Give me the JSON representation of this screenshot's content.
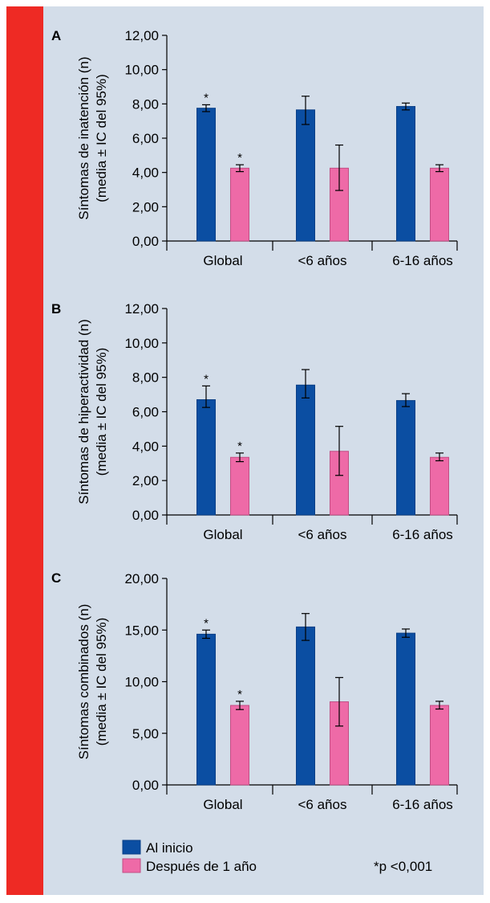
{
  "colors": {
    "al_inicio": "#0b4ea2",
    "despues": "#ee6aa7",
    "left_band": "#ee2a24",
    "background": "#d3dde9"
  },
  "legend": {
    "series1": "Al inicio",
    "series2": "Después de 1 año",
    "note": "*p <0,001"
  },
  "chart_data": [
    {
      "type": "bar",
      "panel": "A",
      "ylabel_line1": "Síntomas de inatención (n)",
      "ylabel_line2": "(media ± IC del 95%)",
      "yticks": [
        "0,00",
        "2,00",
        "4,00",
        "6,00",
        "8,00",
        "10,00",
        "12,00"
      ],
      "ylim": [
        0,
        12
      ],
      "categories": [
        "Global",
        "<6 años",
        "6-16 años"
      ],
      "series": [
        {
          "name": "Al inicio",
          "values": [
            7.75,
            7.65,
            7.85
          ],
          "ci_low": [
            7.55,
            6.8,
            7.65
          ],
          "ci_high": [
            7.95,
            8.45,
            8.05
          ]
        },
        {
          "name": "Después de 1 año",
          "values": [
            4.25,
            4.25,
            4.25
          ],
          "ci_low": [
            4.05,
            2.95,
            4.05
          ],
          "ci_high": [
            4.45,
            5.6,
            4.45
          ]
        }
      ],
      "significance": [
        "*",
        "*"
      ]
    },
    {
      "type": "bar",
      "panel": "B",
      "ylabel_line1": "Síntomas de hiperactividad (n)",
      "ylabel_line2": "(media ± IC del 95%)",
      "yticks": [
        "0,00",
        "2,00",
        "4,00",
        "6,00",
        "8,00",
        "10,00",
        "12,00"
      ],
      "ylim": [
        0,
        12
      ],
      "categories": [
        "Global",
        "<6 años",
        "6-16 años"
      ],
      "series": [
        {
          "name": "Al inicio",
          "values": [
            6.7,
            7.55,
            6.65
          ],
          "ci_low": [
            6.25,
            6.8,
            6.3
          ],
          "ci_high": [
            7.5,
            8.45,
            7.05
          ]
        },
        {
          "name": "Después de 1 año",
          "values": [
            3.35,
            3.7,
            3.35
          ],
          "ci_low": [
            3.1,
            2.3,
            3.15
          ],
          "ci_high": [
            3.6,
            5.15,
            3.6
          ]
        }
      ],
      "significance": [
        "*",
        "*"
      ]
    },
    {
      "type": "bar",
      "panel": "C",
      "ylabel_line1": "Síntomas combinados (n)",
      "ylabel_line2": "(media ± IC del 95%)",
      "yticks": [
        "0,00",
        "5,00",
        "10,00",
        "15,00",
        "20,00"
      ],
      "ylim": [
        0,
        20
      ],
      "categories": [
        "Global",
        "<6 años",
        "6-16 años"
      ],
      "series": [
        {
          "name": "Al inicio",
          "values": [
            14.6,
            15.3,
            14.7
          ],
          "ci_low": [
            14.2,
            14.0,
            14.3
          ],
          "ci_high": [
            15.0,
            16.6,
            15.1
          ]
        },
        {
          "name": "Después de 1 año",
          "values": [
            7.7,
            8.05,
            7.7
          ],
          "ci_low": [
            7.3,
            5.7,
            7.35
          ],
          "ci_high": [
            8.1,
            10.4,
            8.1
          ]
        }
      ],
      "significance": [
        "*",
        "*"
      ]
    }
  ]
}
